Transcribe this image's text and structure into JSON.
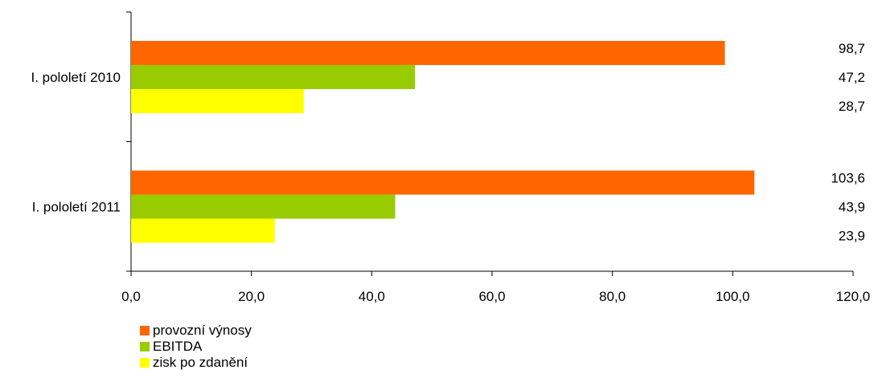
{
  "chart_data": {
    "type": "bar",
    "orientation": "horizontal",
    "categories": [
      "I. pololetí 2010",
      "I. pololetí 2011"
    ],
    "series": [
      {
        "name": "provozní výnosy",
        "color": "#ff6600",
        "values": [
          98.7,
          103.6
        ],
        "labels": [
          "98,7",
          "103,6"
        ]
      },
      {
        "name": "EBITDA",
        "color": "#99cc00",
        "values": [
          47.2,
          43.9
        ],
        "labels": [
          "47,2",
          "43,9"
        ]
      },
      {
        "name": "zisk po zdanění",
        "color": "#ffff00",
        "values": [
          28.7,
          23.9
        ],
        "labels": [
          "28,7",
          "23,9"
        ]
      }
    ],
    "xlim": [
      0,
      120
    ],
    "xticks": [
      0,
      20,
      40,
      60,
      80,
      100,
      120
    ],
    "xtick_labels": [
      "0,0",
      "20,0",
      "40,0",
      "60,0",
      "80,0",
      "100,0",
      "120,0"
    ],
    "grid": false,
    "legend_position": "bottom-left"
  }
}
